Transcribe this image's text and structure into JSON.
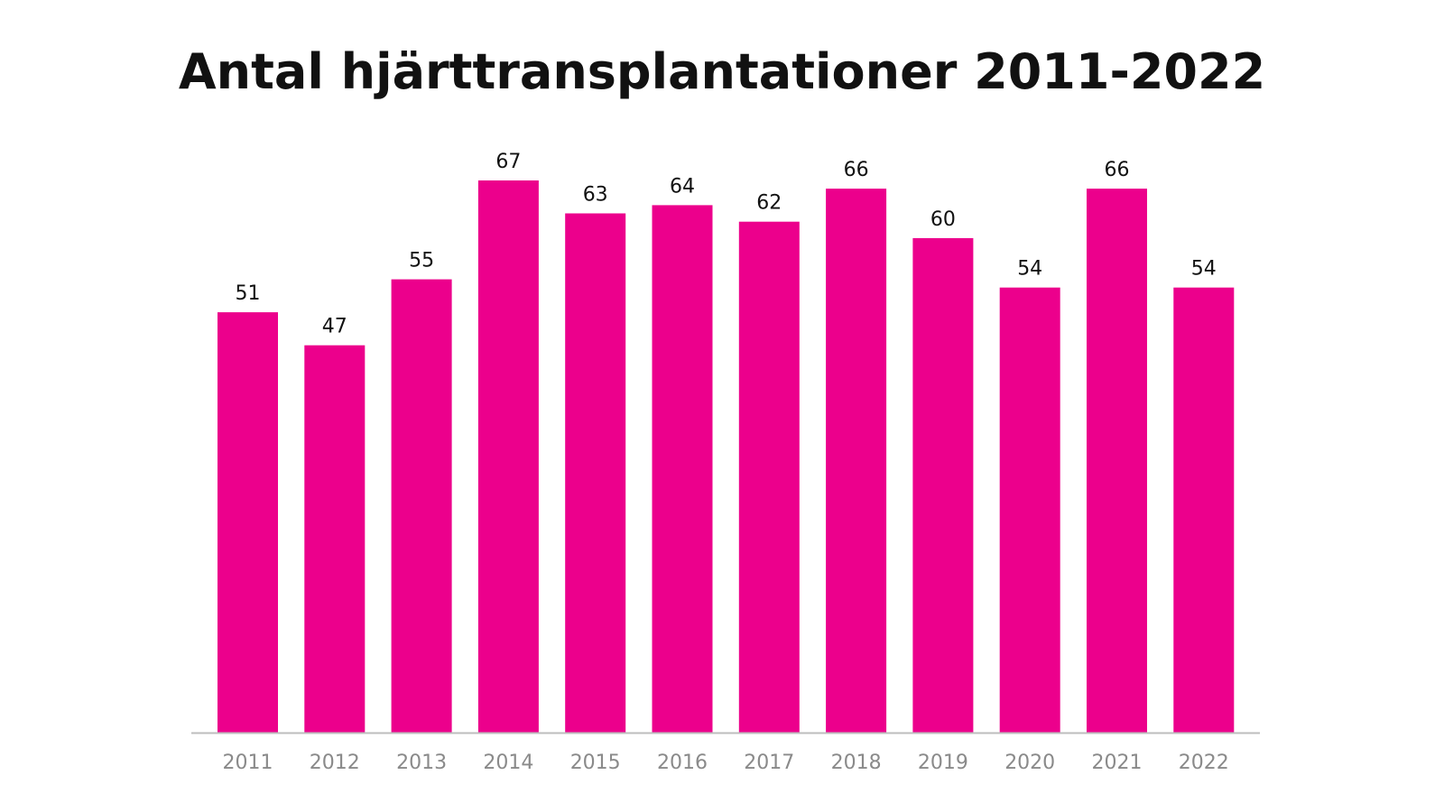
{
  "chart_data": {
    "type": "bar",
    "title": "Antal hjärttransplantationer 2011-2022",
    "xlabel": "",
    "ylabel": "",
    "categories": [
      "2011",
      "2012",
      "2013",
      "2014",
      "2015",
      "2016",
      "2017",
      "2018",
      "2019",
      "2020",
      "2021",
      "2022"
    ],
    "values": [
      51,
      47,
      55,
      67,
      63,
      64,
      62,
      66,
      60,
      54,
      66,
      54
    ],
    "ylim": [
      0,
      67
    ],
    "grid": false,
    "legend": "none",
    "data_labels": true,
    "bar_color": "#ec008c",
    "axis_color": "#bdbdbd",
    "tick_label_color": "#8a8a8a"
  }
}
